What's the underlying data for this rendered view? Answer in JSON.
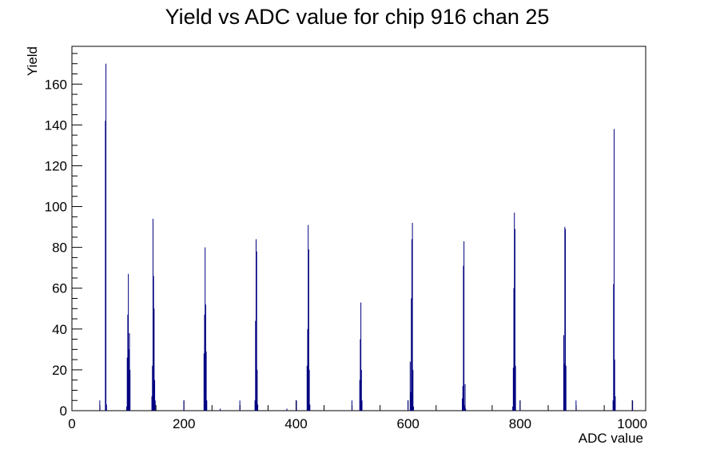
{
  "chart_data": {
    "type": "histogram",
    "title": "Yield vs ADC value for chip 916 chan 25",
    "x_label": "ADC value",
    "y_label": "Yield",
    "color": "#000080",
    "x": [
      49,
      59,
      60,
      61,
      97,
      98,
      99,
      100,
      101,
      102,
      103,
      142,
      143,
      144,
      145,
      146,
      147,
      148,
      199,
      235,
      236,
      237,
      238,
      239,
      240,
      264,
      299,
      326,
      327,
      328,
      329,
      330,
      331,
      383,
      400,
      419,
      420,
      421,
      422,
      423,
      424,
      499,
      513,
      514,
      515,
      516,
      517,
      599,
      603,
      604,
      605,
      606,
      607,
      608,
      609,
      696,
      697,
      698,
      699,
      700,
      701,
      702,
      786,
      787,
      788,
      789,
      790,
      791,
      799,
      877,
      878,
      879,
      880,
      881,
      899,
      965,
      966,
      967,
      968,
      969,
      1000
    ],
    "values": [
      5,
      142,
      170,
      3,
      2,
      26,
      47,
      67,
      30,
      38,
      20,
      7,
      22,
      94,
      66,
      50,
      15,
      5,
      5,
      28,
      47,
      80,
      52,
      29,
      5,
      1,
      5,
      5,
      44,
      84,
      78,
      20,
      3,
      1,
      5,
      22,
      40,
      91,
      79,
      20,
      3,
      5,
      15,
      35,
      53,
      20,
      5,
      5,
      24,
      9,
      55,
      84,
      92,
      20,
      2,
      6,
      12,
      71,
      83,
      2,
      13,
      1,
      2,
      21,
      60,
      97,
      89,
      22,
      5,
      37,
      23,
      90,
      89,
      22,
      5,
      5,
      62,
      138,
      25,
      7,
      5
    ],
    "xlim": [
      0,
      1024
    ],
    "ylim": [
      0,
      178.5
    ],
    "xticks": [
      0,
      200,
      400,
      600,
      800,
      1000
    ],
    "yticks": [
      0,
      20,
      40,
      60,
      80,
      100,
      120,
      140,
      160
    ]
  }
}
